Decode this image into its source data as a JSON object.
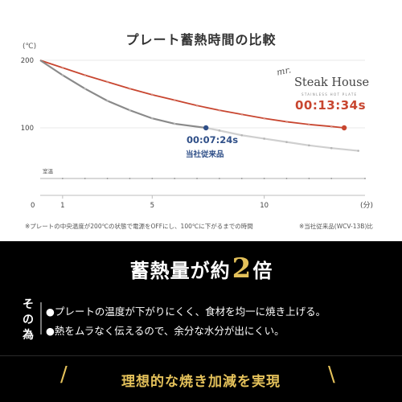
{
  "title": "プレート蓄熱時間の比較",
  "chart_data": {
    "type": "line",
    "unit_label": "(℃)",
    "x_unit_label": "(分)",
    "x_ticks": [
      1,
      5,
      10
    ],
    "x_zero_label": "0",
    "y_ticks": [
      100,
      200
    ],
    "xlim": [
      0,
      14.5
    ],
    "ylim": [
      0,
      200
    ],
    "room_temp_label": "室温",
    "series": [
      {
        "name": "Steak House",
        "color": "#c84630",
        "x": [
          0,
          1,
          2,
          3,
          4,
          5,
          6,
          7,
          8,
          9,
          10,
          11,
          12,
          13,
          13.57
        ],
        "y": [
          200,
          189,
          178,
          168,
          158,
          149,
          141,
          133,
          126,
          120,
          114,
          109,
          105,
          102,
          100
        ]
      },
      {
        "name": "当社従来品",
        "color": "#8a8a8a",
        "x": [
          0,
          1,
          2,
          3,
          4,
          5,
          6,
          7.4,
          8,
          9,
          10,
          11,
          12,
          13,
          14.2
        ],
        "y": [
          200,
          178,
          158,
          140,
          126,
          114,
          106,
          100,
          96,
          89,
          84,
          79,
          74,
          70,
          66
        ]
      },
      {
        "name": "室温",
        "color": "#999999",
        "x": [
          0,
          1,
          2,
          3,
          4,
          5,
          6,
          7,
          8,
          9,
          10,
          11,
          12,
          13,
          14.5
        ],
        "y": [
          25,
          25,
          25,
          25,
          25,
          25,
          25,
          25,
          25,
          25,
          25,
          25,
          25,
          25,
          25
        ]
      }
    ],
    "annotations": [
      {
        "label": "00:13:34s",
        "x": 13.57,
        "y": 100
      },
      {
        "label": "00:07:24s",
        "sub": "当社従来品",
        "x": 7.4,
        "y": 100
      }
    ]
  },
  "logo": {
    "script": "mr.",
    "name": "Steak House",
    "sub": "STAINLESS HOT PLATE"
  },
  "footnote_left": "※プレートの中央温度が200℃の状態で電源をOFFにし、100℃に下がるまでの時間",
  "footnote_right": "※当社従来品(WCV-13B)比",
  "headline": {
    "pre": "蓄熱量が約",
    "num": "2",
    "post": "倍"
  },
  "reason_label": "その為",
  "reasons": [
    "●プレートの温度が下がりにくく、食材を均一に焼き上げる。",
    "●熱をムラなく伝えるので、余分な水分が出にくい。"
  ],
  "slogan": "理想的な焼き加減を実現",
  "slash_left": "/",
  "slash_right": "\\",
  "colors": {
    "accent_gold": "#e4c15a",
    "steak_red": "#c84630",
    "conv_blue": "#2f4f88"
  }
}
